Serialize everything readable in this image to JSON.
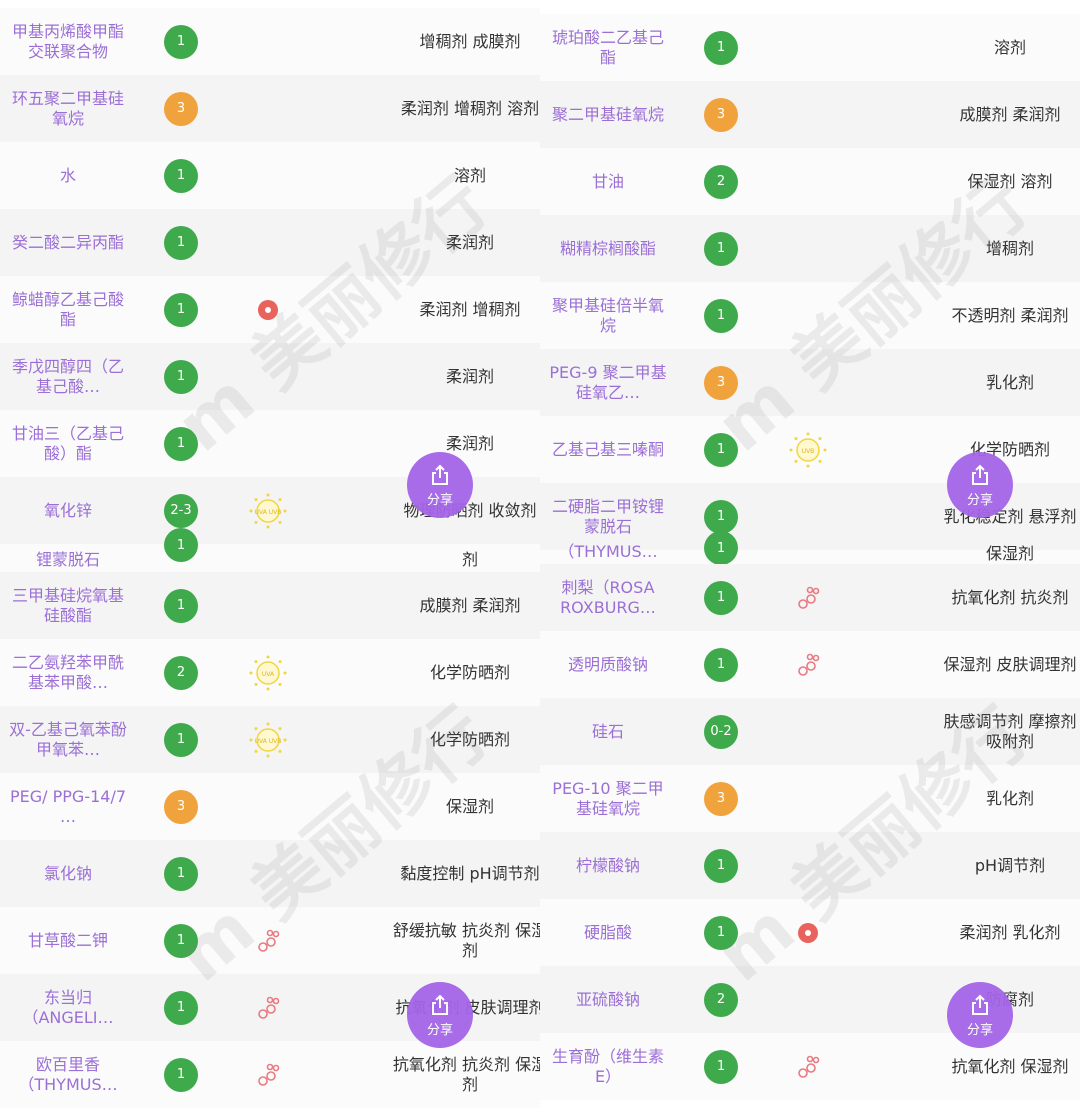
{
  "colors": {
    "score_green": "#3eaa4c",
    "score_orange": "#f0a23c",
    "ingredient_name": "#9b6fd6",
    "share_button": "#a465e8",
    "acne_icon": "#e8635c",
    "active_icon": "#e87a80",
    "sun_icon": "#f2d640"
  },
  "share_label": "分享",
  "watermark": "m 美丽修行",
  "left": {
    "rows": [
      {
        "name": "甲基丙烯酸甲酯交联聚合物",
        "score": "1",
        "level": "green",
        "icon": "",
        "func": "增稠剂 成膜剂"
      },
      {
        "name": "环五聚二甲基硅氧烷",
        "score": "3",
        "level": "orange",
        "icon": "",
        "func": "柔润剂 增稠剂 溶剂"
      },
      {
        "name": "水",
        "score": "1",
        "level": "green",
        "icon": "",
        "func": "溶剂"
      },
      {
        "name": "癸二酸二异丙酯",
        "score": "1",
        "level": "green",
        "icon": "",
        "func": "柔润剂"
      },
      {
        "name": "鲸蜡醇乙基己酸酯",
        "score": "1",
        "level": "green",
        "icon": "acne-risk-icon",
        "func": "柔润剂 增稠剂"
      },
      {
        "name": "季戊四醇四（乙基己酸…",
        "score": "1",
        "level": "green",
        "icon": "",
        "func": "柔润剂"
      },
      {
        "name": "甘油三（乙基己酸）酯",
        "score": "1",
        "level": "green",
        "icon": "",
        "func": "柔润剂"
      },
      {
        "name": "氧化锌",
        "score": "2-3",
        "level": "green",
        "icon": "sun-uva-uvb-icon",
        "func": "物理防晒剂 收敛剂"
      },
      {
        "name": "锂蒙脱石",
        "score": "1",
        "level": "green",
        "icon": "",
        "func": "剂",
        "partial": true
      },
      {
        "name": "三甲基硅烷氧基硅酸酯",
        "score": "1",
        "level": "green",
        "icon": "",
        "func": "成膜剂 柔润剂"
      },
      {
        "name": "二乙氨羟苯甲酰基苯甲酸…",
        "score": "2",
        "level": "green",
        "icon": "sun-uva-icon",
        "func": "化学防晒剂"
      },
      {
        "name": "双-乙基己氧苯酚甲氧苯…",
        "score": "1",
        "level": "green",
        "icon": "sun-uva-uvb-icon",
        "func": "化学防晒剂"
      },
      {
        "name": "PEG/ PPG-14/7 …",
        "score": "3",
        "level": "orange",
        "icon": "",
        "func": "保湿剂"
      },
      {
        "name": "氯化钠",
        "score": "1",
        "level": "green",
        "icon": "",
        "func": "黏度控制 pH调节剂"
      },
      {
        "name": "甘草酸二钾",
        "score": "1",
        "level": "green",
        "icon": "active-ingredient-icon",
        "func": "舒缓抗敏 抗炎剂 保湿剂"
      },
      {
        "name": "东当归（ANGELI…",
        "score": "1",
        "level": "green",
        "icon": "active-ingredient-icon",
        "func": "抗氧化剂 皮肤调理剂"
      },
      {
        "name": "欧百里香（THYMUS…",
        "score": "1",
        "level": "green",
        "icon": "active-ingredient-icon",
        "func": "抗氧化剂 抗炎剂 保湿剂"
      }
    ]
  },
  "right": {
    "rows": [
      {
        "name": "琥珀酸二乙基己酯",
        "score": "1",
        "level": "green",
        "icon": "",
        "func": "溶剂"
      },
      {
        "name": "聚二甲基硅氧烷",
        "score": "3",
        "level": "orange",
        "icon": "",
        "func": "成膜剂 柔润剂"
      },
      {
        "name": "甘油",
        "score": "2",
        "level": "green",
        "icon": "",
        "func": "保湿剂 溶剂"
      },
      {
        "name": "糊精棕榈酸酯",
        "score": "1",
        "level": "green",
        "icon": "",
        "func": "增稠剂"
      },
      {
        "name": "聚甲基硅倍半氧烷",
        "score": "1",
        "level": "green",
        "icon": "",
        "func": "不透明剂 柔润剂"
      },
      {
        "name": "PEG-9 聚二甲基硅氧乙…",
        "score": "3",
        "level": "orange",
        "icon": "",
        "func": "乳化剂"
      },
      {
        "name": "乙基己基三嗪酮",
        "score": "1",
        "level": "green",
        "icon": "sun-uvb-icon",
        "func": "化学防晒剂"
      },
      {
        "name": "二硬脂二甲铵锂蒙脱石",
        "score": "1",
        "level": "green",
        "icon": "",
        "func": "乳化稳定剂 悬浮剂"
      },
      {
        "name": "（THYMUS…",
        "score": "1",
        "level": "green",
        "icon": "",
        "func": "保湿剂",
        "partial": true
      },
      {
        "name": "刺梨（ROSA ROXBURG…",
        "score": "1",
        "level": "green",
        "icon": "active-ingredient-icon",
        "func": "抗氧化剂 抗炎剂"
      },
      {
        "name": "透明质酸钠",
        "score": "1",
        "level": "green",
        "icon": "active-ingredient-icon",
        "func": "保湿剂 皮肤调理剂"
      },
      {
        "name": "硅石",
        "score": "0-2",
        "level": "green",
        "icon": "",
        "func": "肤感调节剂 摩擦剂 吸附剂"
      },
      {
        "name": "PEG-10 聚二甲基硅氧烷",
        "score": "3",
        "level": "orange",
        "icon": "",
        "func": "乳化剂"
      },
      {
        "name": "柠檬酸钠",
        "score": "1",
        "level": "green",
        "icon": "",
        "func": "pH调节剂"
      },
      {
        "name": "硬脂酸",
        "score": "1",
        "level": "green",
        "icon": "acne-risk-icon",
        "func": "柔润剂 乳化剂"
      },
      {
        "name": "亚硫酸钠",
        "score": "2",
        "level": "green",
        "icon": "",
        "func": "防腐剂"
      },
      {
        "name": "生育酚（维生素E）",
        "score": "1",
        "level": "green",
        "icon": "active-ingredient-icon",
        "func": "抗氧化剂 保湿剂"
      }
    ]
  }
}
